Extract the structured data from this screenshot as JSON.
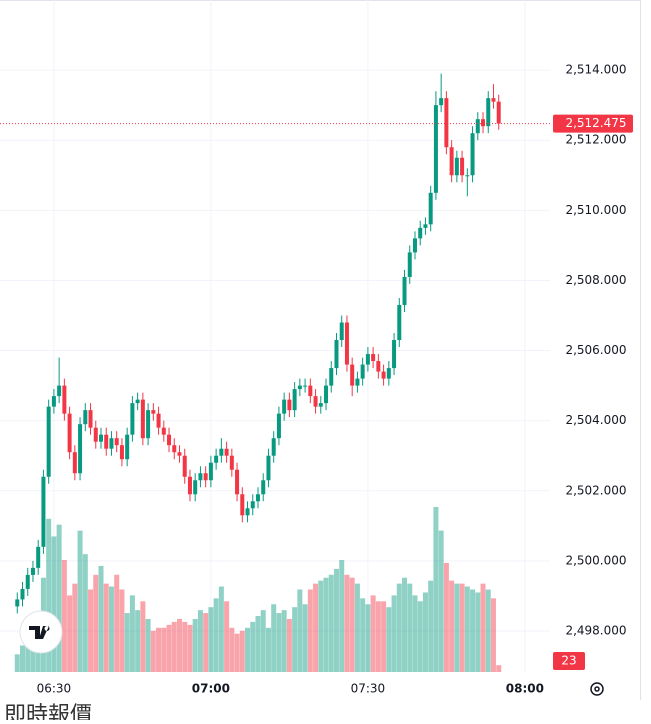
{
  "chart_data": {
    "type": "candlestick",
    "x": [
      383,
      384,
      385,
      386,
      387,
      388,
      389,
      390,
      391,
      392,
      393,
      394,
      395,
      396,
      397,
      398,
      399,
      400,
      401,
      402,
      403,
      404,
      405,
      406,
      407,
      408,
      409,
      410,
      411,
      412,
      413,
      414,
      415,
      416,
      417,
      418,
      419,
      420,
      421,
      422,
      423,
      424,
      425,
      426,
      427,
      428,
      429,
      430,
      431,
      432,
      433,
      434,
      435,
      436,
      437,
      438,
      439,
      440,
      441,
      442,
      443,
      444,
      445,
      446,
      447,
      448,
      449,
      450,
      451,
      452,
      453,
      454,
      455,
      456,
      457,
      458,
      459,
      460,
      461,
      462,
      463,
      464,
      465,
      466,
      467,
      468,
      469,
      470,
      471,
      472,
      473,
      474,
      475
    ],
    "open": [
      2498.7,
      2498.9,
      2499.2,
      2499.6,
      2499.8,
      2500.4,
      2502.4,
      2504.4,
      2504.7,
      2505.0,
      2504.2,
      2503.1,
      2502.5,
      2503.9,
      2504.3,
      2503.8,
      2503.4,
      2503.6,
      2503.2,
      2503.5,
      2503.3,
      2502.9,
      2503.6,
      2504.5,
      2504.6,
      2503.5,
      2504.3,
      2504.2,
      2503.8,
      2503.6,
      2503.3,
      2503.1,
      2503.0,
      2502.4,
      2501.9,
      2502.3,
      2502.5,
      2502.3,
      2502.8,
      2503.0,
      2503.2,
      2503.0,
      2502.6,
      2501.9,
      2501.3,
      2501.5,
      2501.7,
      2501.9,
      2502.3,
      2503.0,
      2503.5,
      2504.2,
      2504.6,
      2504.3,
      2504.9,
      2505.0,
      2505.0,
      2504.7,
      2504.4,
      2504.5,
      2505.0,
      2505.5,
      2506.3,
      2506.8,
      2505.6,
      2505.0,
      2505.2,
      2505.6,
      2505.9,
      2505.7,
      2505.4,
      2505.2,
      2505.5,
      2506.3,
      2507.3,
      2508.1,
      2508.8,
      2509.2,
      2509.5,
      2509.6,
      2510.5,
      2513.0,
      2513.2,
      2511.8,
      2511.0,
      2511.5,
      2511.0,
      2511.0,
      2512.2,
      2512.6,
      2512.4,
      2513.2,
      2513.1
    ],
    "high": [
      2499.1,
      2499.4,
      2499.8,
      2500.0,
      2500.6,
      2502.6,
      2504.6,
      2504.9,
      2505.8,
      2505.2,
      2504.4,
      2503.3,
      2504.1,
      2504.5,
      2504.5,
      2504.0,
      2503.8,
      2503.8,
      2503.7,
      2503.7,
      2503.5,
      2503.8,
      2504.7,
      2504.8,
      2504.8,
      2504.5,
      2504.5,
      2504.4,
      2504.0,
      2503.8,
      2503.5,
      2503.3,
      2503.2,
      2502.6,
      2502.5,
      2502.7,
      2502.7,
      2503.0,
      2503.2,
      2503.5,
      2503.4,
      2503.2,
      2502.8,
      2502.1,
      2501.7,
      2501.9,
      2502.1,
      2502.5,
      2503.2,
      2503.7,
      2504.4,
      2504.8,
      2504.8,
      2505.1,
      2505.2,
      2505.2,
      2505.2,
      2504.9,
      2504.7,
      2505.2,
      2505.7,
      2506.5,
      2507.0,
      2507.0,
      2505.8,
      2505.4,
      2505.8,
      2506.1,
      2506.1,
      2505.9,
      2505.6,
      2505.7,
      2506.5,
      2507.5,
      2508.3,
      2509.0,
      2509.4,
      2509.7,
      2509.8,
      2510.7,
      2513.4,
      2513.9,
      2513.4,
      2512.0,
      2511.7,
      2511.7,
      2511.2,
      2512.4,
      2512.8,
      2512.8,
      2513.4,
      2513.6,
      2513.3
    ],
    "low": [
      2498.5,
      2498.7,
      2499.0,
      2499.4,
      2499.6,
      2500.2,
      2502.2,
      2504.2,
      2504.5,
      2504.0,
      2502.9,
      2502.3,
      2502.3,
      2503.7,
      2503.6,
      2503.2,
      2503.2,
      2503.0,
      2503.0,
      2503.1,
      2502.7,
      2502.7,
      2503.4,
      2504.3,
      2503.3,
      2503.3,
      2504.0,
      2503.6,
      2503.4,
      2503.1,
      2502.9,
      2502.8,
      2502.2,
      2501.7,
      2501.7,
      2502.1,
      2502.1,
      2502.1,
      2502.6,
      2502.8,
      2502.8,
      2502.4,
      2501.7,
      2501.1,
      2501.1,
      2501.3,
      2501.5,
      2501.7,
      2502.1,
      2502.8,
      2503.3,
      2504.0,
      2504.1,
      2504.1,
      2504.7,
      2504.8,
      2504.5,
      2504.2,
      2504.2,
      2504.3,
      2504.8,
      2505.3,
      2506.1,
      2505.4,
      2504.7,
      2504.8,
      2505.0,
      2505.4,
      2505.5,
      2505.2,
      2505.0,
      2505.0,
      2505.3,
      2506.1,
      2507.1,
      2507.9,
      2508.6,
      2509.0,
      2509.3,
      2509.4,
      2510.3,
      2512.8,
      2511.6,
      2510.8,
      2510.8,
      2510.8,
      2510.4,
      2510.8,
      2512.0,
      2512.2,
      2512.2,
      2512.9,
      2512.3
    ],
    "close": [
      2498.9,
      2499.2,
      2499.6,
      2499.8,
      2500.4,
      2502.4,
      2504.4,
      2504.7,
      2505.0,
      2504.2,
      2503.1,
      2502.5,
      2503.9,
      2504.3,
      2503.8,
      2503.4,
      2503.6,
      2503.2,
      2503.5,
      2503.3,
      2502.9,
      2503.6,
      2504.5,
      2504.6,
      2503.5,
      2504.3,
      2504.2,
      2503.8,
      2503.6,
      2503.3,
      2503.1,
      2503.0,
      2502.4,
      2501.9,
      2502.3,
      2502.5,
      2502.3,
      2502.8,
      2503.0,
      2503.2,
      2503.0,
      2502.6,
      2501.9,
      2501.3,
      2501.5,
      2501.7,
      2501.9,
      2502.3,
      2503.0,
      2503.5,
      2504.2,
      2504.6,
      2504.3,
      2504.9,
      2505.0,
      2505.0,
      2504.7,
      2504.4,
      2504.5,
      2505.0,
      2505.5,
      2506.3,
      2506.8,
      2505.6,
      2505.0,
      2505.2,
      2505.6,
      2505.9,
      2505.7,
      2505.4,
      2505.2,
      2505.5,
      2506.3,
      2507.3,
      2508.1,
      2508.8,
      2509.2,
      2509.5,
      2509.6,
      2510.5,
      2513.0,
      2513.2,
      2511.8,
      2511.0,
      2511.5,
      2511.0,
      2511.0,
      2512.2,
      2512.6,
      2512.4,
      2513.2,
      2513.1,
      2512.475
    ],
    "volume": [
      60,
      90,
      120,
      150,
      200,
      320,
      520,
      460,
      500,
      380,
      260,
      300,
      480,
      400,
      280,
      330,
      360,
      300,
      290,
      330,
      280,
      200,
      260,
      210,
      240,
      180,
      140,
      150,
      150,
      160,
      170,
      180,
      170,
      160,
      180,
      210,
      200,
      220,
      250,
      290,
      240,
      150,
      130,
      140,
      150,
      170,
      190,
      210,
      150,
      230,
      200,
      210,
      180,
      220,
      280,
      230,
      280,
      300,
      310,
      320,
      330,
      350,
      380,
      330,
      320,
      300,
      250,
      230,
      260,
      240,
      240,
      220,
      260,
      300,
      320,
      300,
      260,
      240,
      270,
      310,
      560,
      480,
      370,
      310,
      300,
      300,
      290,
      280,
      270,
      300,
      280,
      250,
      23
    ],
    "up_color": "#089981",
    "down_color": "#f23645",
    "xlim": [
      379.7,
      484.8
    ],
    "xticks": [
      {
        "value": 390,
        "label": "06:30"
      },
      {
        "value": 420,
        "label": "07:00"
      },
      {
        "value": 450,
        "label": "07:30"
      },
      {
        "value": 480,
        "label": "08:00"
      }
    ],
    "ylim": [
      2496.83,
      2516.0
    ],
    "yticks": [
      {
        "value": 2498,
        "label": "2,498.000"
      },
      {
        "value": 2500,
        "label": "2,500.000"
      },
      {
        "value": 2502,
        "label": "2,502.000"
      },
      {
        "value": 2504,
        "label": "2,504.000"
      },
      {
        "value": 2506,
        "label": "2,506.000"
      },
      {
        "value": 2508,
        "label": "2,508.000"
      },
      {
        "value": 2510,
        "label": "2,510.000"
      },
      {
        "value": 2512,
        "label": "2,512.000"
      },
      {
        "value": 2514,
        "label": "2,514.000"
      }
    ],
    "last_price": {
      "value": 2512.475,
      "label": "2,512.475"
    },
    "grid": true,
    "footer": "即時報價"
  }
}
